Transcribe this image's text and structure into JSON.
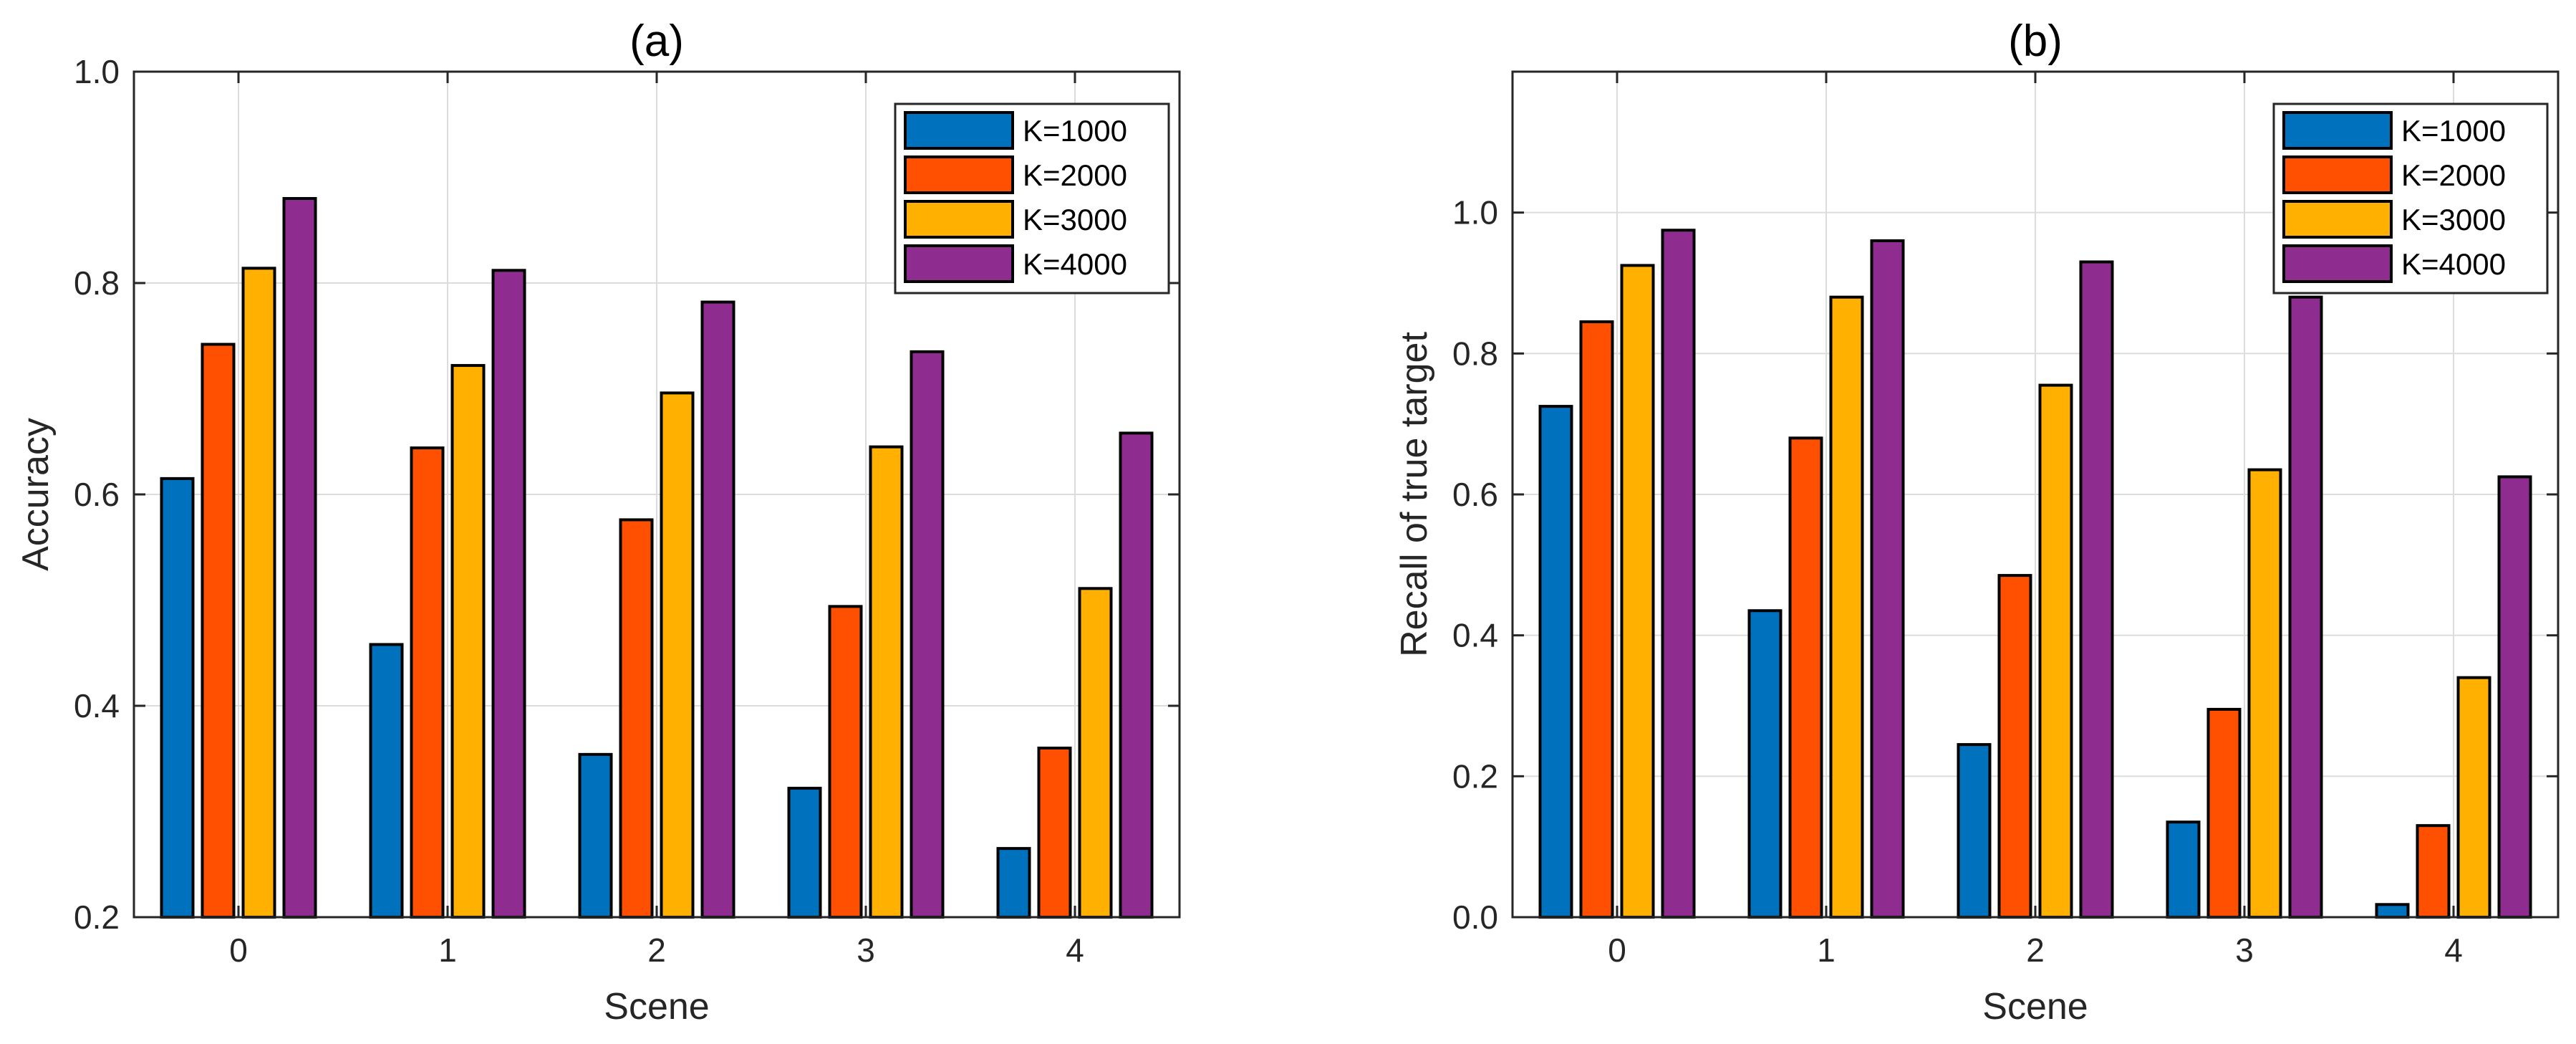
{
  "chart_data": [
    {
      "type": "bar",
      "title": "(a)",
      "xlabel": "Scene",
      "ylabel": "Accuracy",
      "categories": [
        "0",
        "1",
        "2",
        "3",
        "4"
      ],
      "ylim": [
        0.2,
        1.0
      ],
      "yticks": [
        0.2,
        0.4,
        0.6,
        0.8,
        1.0
      ],
      "ytick_labels": [
        "0.2",
        "0.4",
        "0.6",
        "0.8",
        "1.0"
      ],
      "grid": true,
      "legend_position": "top-right",
      "series": [
        {
          "name": "K=1000",
          "color": "#0072BD",
          "values": [
            0.615,
            0.458,
            0.354,
            0.322,
            0.265
          ]
        },
        {
          "name": "K=2000",
          "color": "#FF4F00",
          "values": [
            0.742,
            0.644,
            0.576,
            0.494,
            0.36
          ]
        },
        {
          "name": "K=3000",
          "color": "#FFB000",
          "values": [
            0.814,
            0.722,
            0.696,
            0.645,
            0.511
          ]
        },
        {
          "name": "K=4000",
          "color": "#8F2C8F",
          "values": [
            0.88,
            0.812,
            0.782,
            0.735,
            0.658
          ]
        }
      ]
    },
    {
      "type": "bar",
      "title": "(b)",
      "xlabel": "Scene",
      "ylabel": "Recall of true target",
      "categories": [
        "0",
        "1",
        "2",
        "3",
        "4"
      ],
      "ylim": [
        0.0,
        1.2
      ],
      "yticks": [
        0.0,
        0.2,
        0.4,
        0.6,
        0.8,
        1.0
      ],
      "ytick_labels": [
        "0.0",
        "0.2",
        "0.4",
        "0.6",
        "0.8",
        "1.0"
      ],
      "grid": true,
      "legend_position": "top-right",
      "series": [
        {
          "name": "K=1000",
          "color": "#0072BD",
          "values": [
            0.725,
            0.435,
            0.245,
            0.135,
            0.018
          ]
        },
        {
          "name": "K=2000",
          "color": "#FF4F00",
          "values": [
            0.845,
            0.68,
            0.485,
            0.295,
            0.13
          ]
        },
        {
          "name": "K=3000",
          "color": "#FFB000",
          "values": [
            0.925,
            0.88,
            0.755,
            0.635,
            0.34
          ]
        },
        {
          "name": "K=4000",
          "color": "#8F2C8F",
          "values": [
            0.975,
            0.96,
            0.93,
            0.88,
            0.625
          ]
        }
      ]
    }
  ]
}
